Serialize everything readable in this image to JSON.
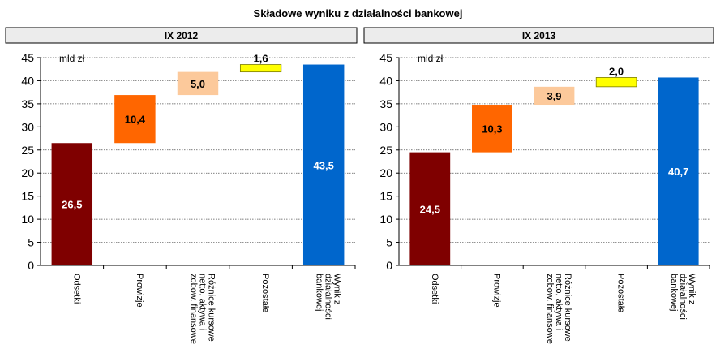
{
  "title": "Składowe wyniku z działalności bankowej",
  "unit_label": "mld zł",
  "colors": {
    "odsetki": "#7f0000",
    "prowizje": "#ff6600",
    "roznice": "#fcc99b",
    "pozostale": "#ffff00",
    "wynik": "#0066cc",
    "header_bg": "#ececec"
  },
  "chart_data": [
    {
      "type": "bar",
      "subtype": "waterfall",
      "panel_title": "IX 2012",
      "categories": [
        "Odsetki",
        "Prowizje",
        "Różnice kursowe netto, aktywa i zobow. finansowe",
        "Pozostałe",
        "Wynik z działalności bankowej"
      ],
      "category_lines": [
        [
          "Odsetki"
        ],
        [
          "Prowizje"
        ],
        [
          "Różnice kursowe",
          "netto, aktywa i",
          "zobow. finansowe"
        ],
        [
          "Pozostałe"
        ],
        [
          "Wynik z",
          "działalności",
          "bankowej"
        ]
      ],
      "values": [
        26.5,
        10.4,
        5.0,
        1.6,
        43.5
      ],
      "bases": [
        0,
        26.5,
        36.9,
        41.9,
        0
      ],
      "value_labels": [
        "26,5",
        "10,4",
        "5,0",
        "1,6",
        "43,5"
      ],
      "ylim": [
        0,
        45
      ],
      "yticks": [
        0,
        5,
        10,
        15,
        20,
        25,
        30,
        35,
        40,
        45
      ],
      "grid": true
    },
    {
      "type": "bar",
      "subtype": "waterfall",
      "panel_title": "IX 2013",
      "categories": [
        "Odsetki",
        "Prowizje",
        "Różnice kursowe netto, aktywa i zobow. finansowe",
        "Pozostałe",
        "Wynik z działalności bankowej"
      ],
      "category_lines": [
        [
          "Odsetki"
        ],
        [
          "Prowizje"
        ],
        [
          "Różnice kursowe",
          "netto, aktywa i",
          "zobow. finansowe"
        ],
        [
          "Pozostałe"
        ],
        [
          "Wynik z",
          "działalności",
          "bankowej"
        ]
      ],
      "values": [
        24.5,
        10.3,
        3.9,
        2.0,
        40.7
      ],
      "bases": [
        0,
        24.5,
        34.8,
        38.7,
        0
      ],
      "value_labels": [
        "24,5",
        "10,3",
        "3,9",
        "2,0",
        "40,7"
      ],
      "ylim": [
        0,
        45
      ],
      "yticks": [
        0,
        5,
        10,
        15,
        20,
        25,
        30,
        35,
        40,
        45
      ],
      "grid": true
    }
  ]
}
